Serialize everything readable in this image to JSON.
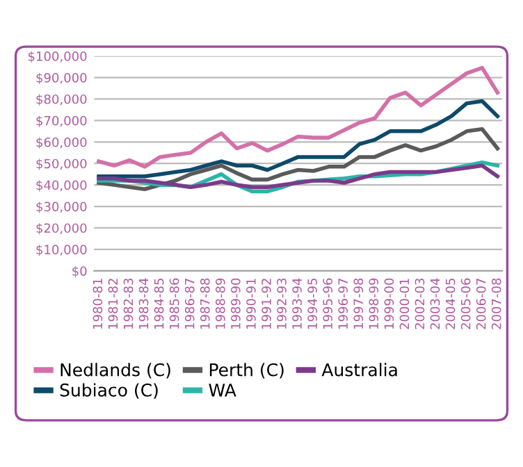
{
  "chart_data": {
    "type": "line",
    "categories": [
      "1980-81",
      "1981-82",
      "1982-83",
      "1983-84",
      "1984-85",
      "1985-86",
      "1986-87",
      "1987-88",
      "1988-89",
      "1989-90",
      "1990-91",
      "1991-92",
      "1992-93",
      "1993-94",
      "1994-95",
      "1995-96",
      "1996-97",
      "1997-98",
      "1998-99",
      "1999-00",
      "2000-01",
      "2002-03",
      "2003-04",
      "2004-05",
      "2005-06",
      "2006-07",
      "2007-08"
    ],
    "series": [
      {
        "name": "Nedlands (C)",
        "color": "#d470a8",
        "values": [
          51000,
          49000,
          51500,
          48500,
          53000,
          54000,
          55000,
          60000,
          64000,
          57000,
          59500,
          56000,
          59000,
          62500,
          62000,
          62000,
          65500,
          69000,
          71000,
          80500,
          83000,
          77000,
          82000,
          87000,
          92000,
          94500,
          83000
        ]
      },
      {
        "name": "Subiaco (C)",
        "color": "#0d4a6a",
        "values": [
          44000,
          44000,
          44000,
          44000,
          45000,
          46000,
          47000,
          49000,
          51000,
          49000,
          49000,
          47000,
          50000,
          53000,
          53000,
          53000,
          53000,
          59000,
          61000,
          65000,
          65000,
          65000,
          68000,
          72000,
          78000,
          79000,
          72000
        ]
      },
      {
        "name": "Perth (C)",
        "color": "#5a5a5a",
        "values": [
          41000,
          40000,
          39000,
          38000,
          40000,
          42000,
          45000,
          47000,
          49000,
          45500,
          42500,
          42500,
          45000,
          47000,
          46500,
          48500,
          48500,
          53000,
          53000,
          56000,
          58500,
          56000,
          58000,
          61000,
          65000,
          66000,
          57000
        ]
      },
      {
        "name": "WA",
        "color": "#2bb5a8",
        "values": [
          42000,
          42000,
          42000,
          41000,
          40000,
          40000,
          39000,
          42000,
          45000,
          40000,
          37000,
          37000,
          39000,
          41500,
          42000,
          42500,
          43000,
          44000,
          44000,
          44500,
          45000,
          45000,
          46000,
          47500,
          49000,
          50500,
          49000
        ]
      },
      {
        "name": "Australia",
        "color": "#7a3a8c",
        "values": [
          43000,
          43000,
          42000,
          42000,
          41000,
          40000,
          39000,
          40000,
          41500,
          40000,
          39000,
          39000,
          40000,
          41000,
          42000,
          42000,
          41000,
          43000,
          45000,
          46000,
          46000,
          46000,
          46000,
          47000,
          48000,
          49000,
          44000
        ]
      }
    ],
    "ylim": [
      0,
      100000
    ],
    "yticks": [
      {
        "value": 0,
        "label": "$0"
      },
      {
        "value": 10000,
        "label": "$10,000"
      },
      {
        "value": 20000,
        "label": "$20,000"
      },
      {
        "value": 30000,
        "label": "$30,000"
      },
      {
        "value": 40000,
        "label": "$40,000"
      },
      {
        "value": 50000,
        "label": "$50,000"
      },
      {
        "value": 60000,
        "label": "$60,000"
      },
      {
        "value": 70000,
        "label": "$70,000"
      },
      {
        "value": 80000,
        "label": "$80,000"
      },
      {
        "value": 90000,
        "label": "$90,000"
      },
      {
        "value": 100000,
        "label": "$100,000"
      }
    ],
    "grid": "y",
    "legend": "bottom",
    "marker": "none",
    "line_style": "solid"
  }
}
